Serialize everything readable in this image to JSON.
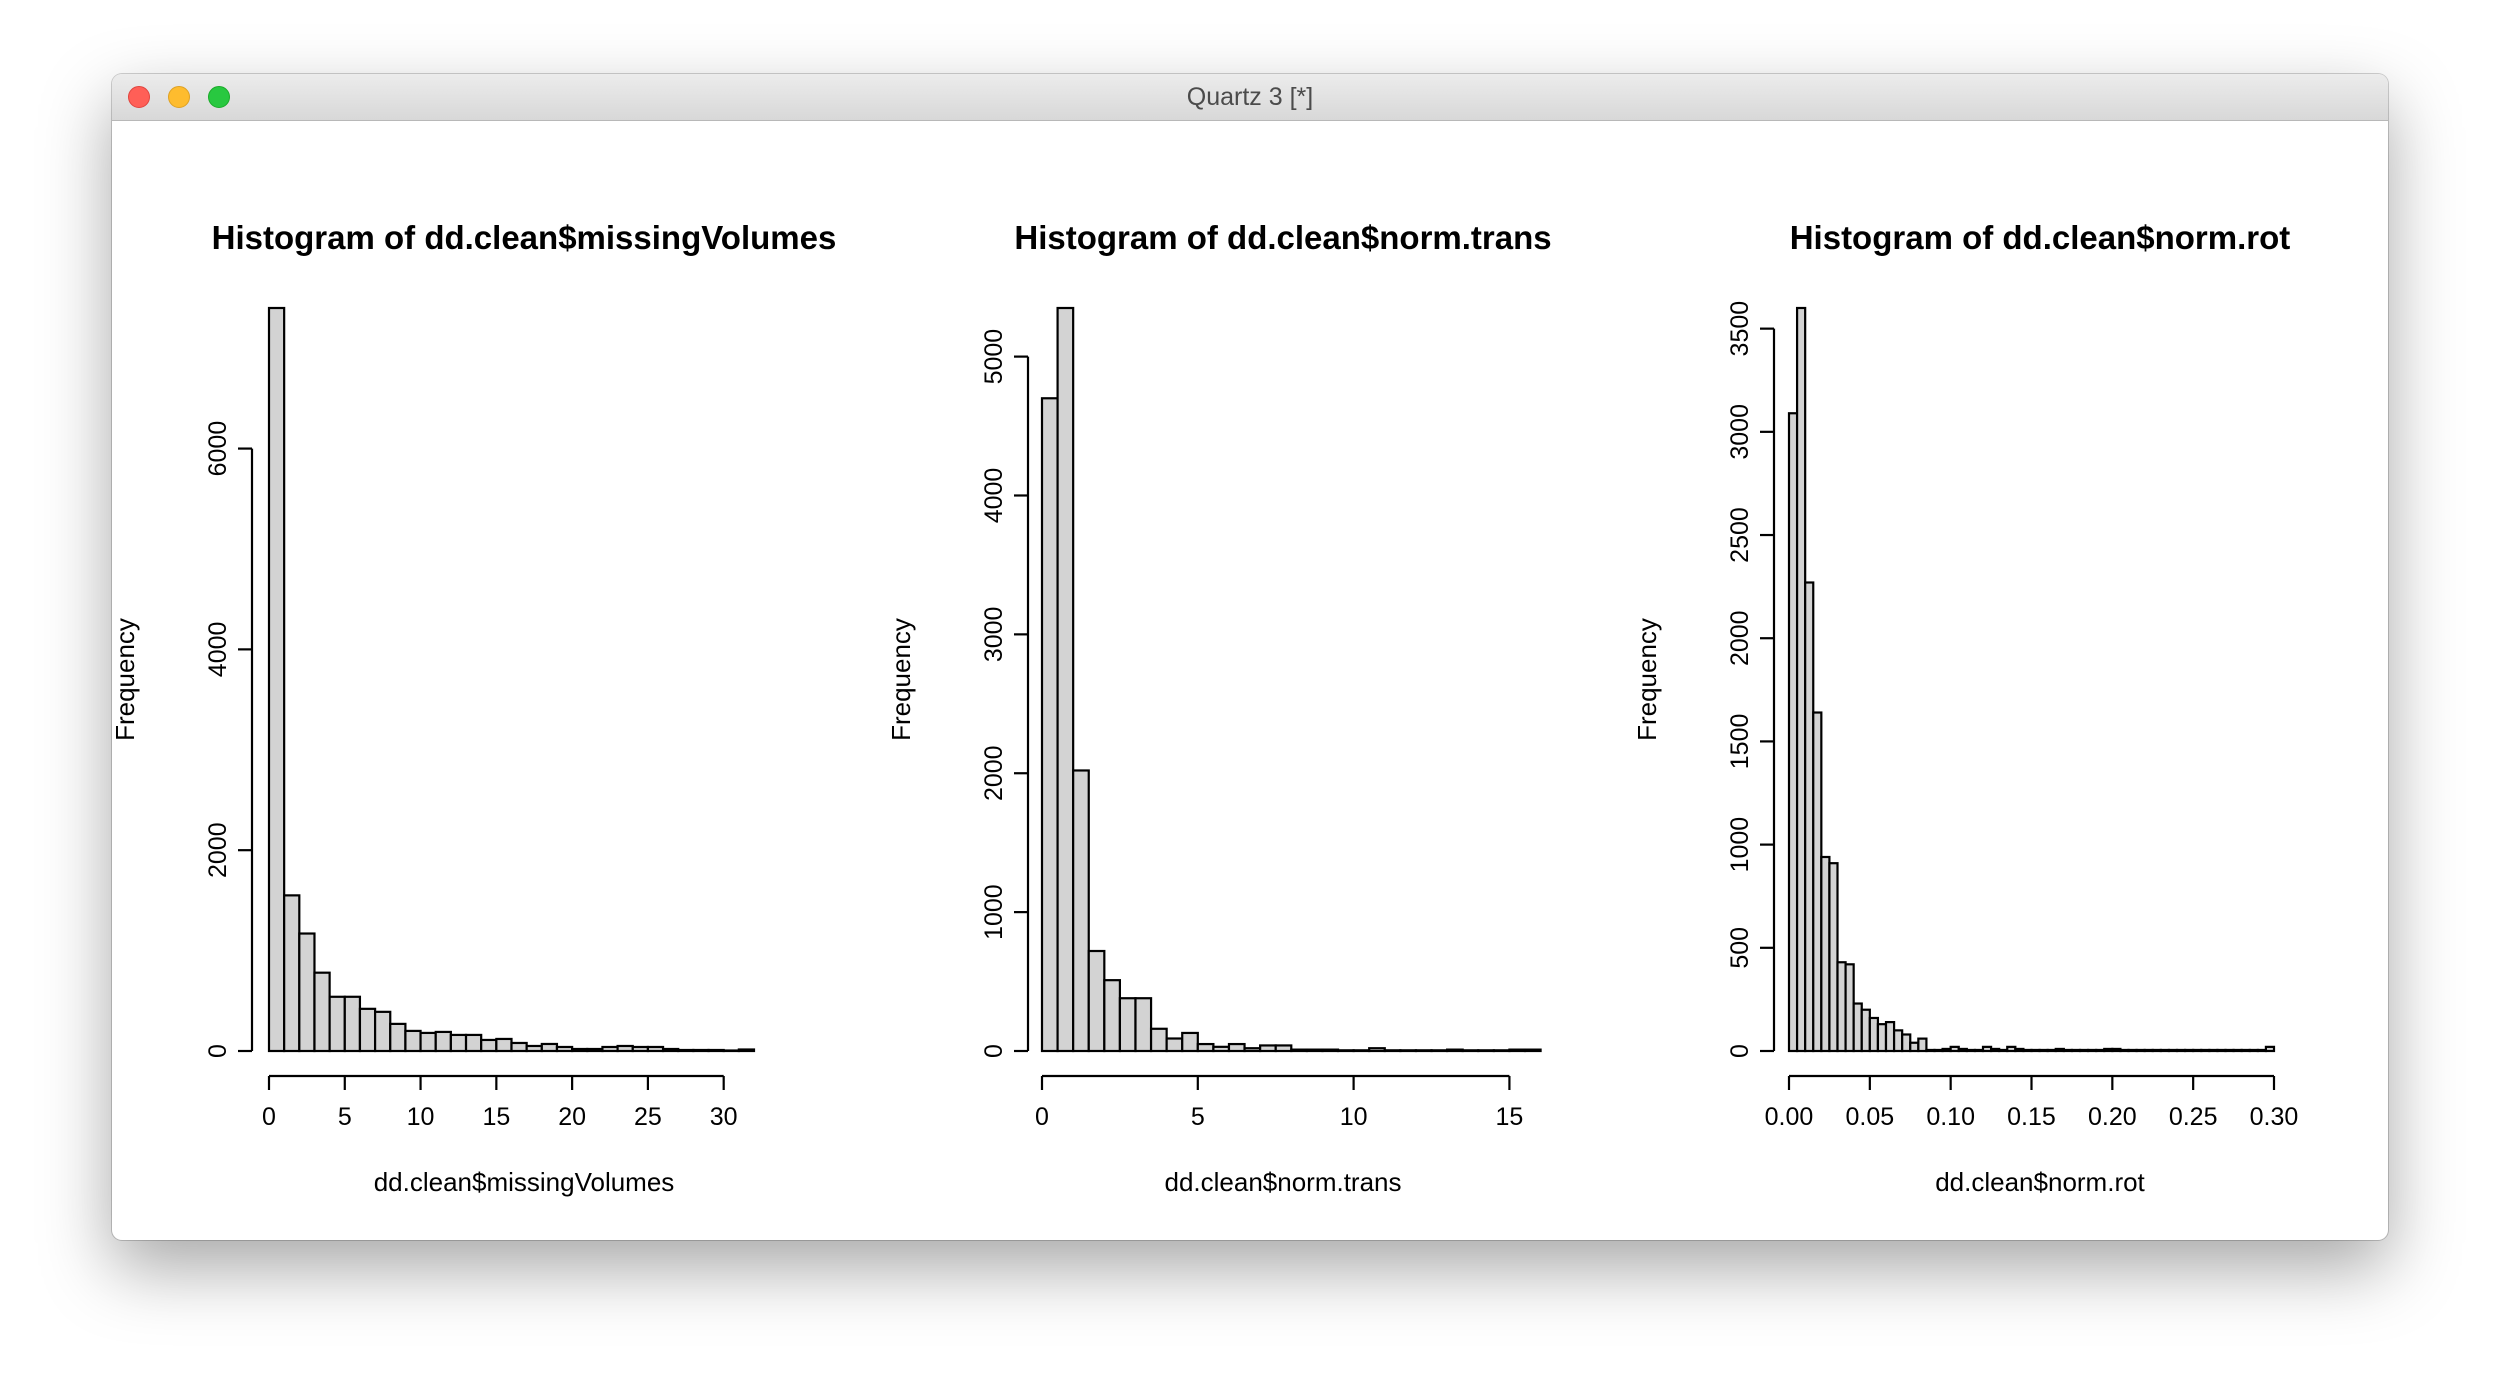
{
  "window": {
    "title": "Quartz 3 [*]"
  },
  "chart_data": [
    {
      "type": "histogram",
      "title": "Histogram of dd.clean$missingVolumes",
      "xlabel": "dd.clean$missingVolumes",
      "ylabel": "Frequency",
      "bin_width": 1,
      "bin_start": 0,
      "values": [
        7400,
        1550,
        1170,
        780,
        540,
        540,
        420,
        390,
        270,
        200,
        180,
        190,
        160,
        160,
        110,
        120,
        80,
        50,
        70,
        40,
        20,
        20,
        40,
        50,
        40,
        40,
        20,
        10,
        10,
        10,
        5,
        15
      ],
      "xlim": [
        0,
        32
      ],
      "ylim": [
        0,
        7400
      ],
      "xticks": [
        0,
        5,
        10,
        15,
        20,
        25,
        30
      ],
      "yticks": [
        0,
        2000,
        4000,
        6000
      ],
      "xtick_labels": [
        "0",
        "5",
        "10",
        "15",
        "20",
        "25",
        "30"
      ],
      "ytick_labels": [
        "0",
        "2000",
        "4000",
        "6000"
      ]
    },
    {
      "type": "histogram",
      "title": "Histogram of dd.clean$norm.trans",
      "xlabel": "dd.clean$norm.trans",
      "ylabel": "Frequency",
      "bin_width": 0.5,
      "bin_start": 0,
      "values": [
        4700,
        5350,
        2020,
        720,
        510,
        380,
        380,
        160,
        90,
        130,
        50,
        30,
        50,
        20,
        40,
        40,
        10,
        10,
        10,
        5,
        5,
        20,
        5,
        5,
        5,
        5,
        10,
        5,
        5,
        5,
        10,
        10
      ],
      "xlim": [
        0,
        15.5
      ],
      "ylim": [
        0,
        5350
      ],
      "xticks": [
        0,
        5,
        10,
        15
      ],
      "yticks": [
        0,
        1000,
        2000,
        3000,
        4000,
        5000
      ],
      "xtick_labels": [
        "0",
        "5",
        "10",
        "15"
      ],
      "ytick_labels": [
        "0",
        "1000",
        "2000",
        "3000",
        "4000",
        "5000"
      ]
    },
    {
      "type": "histogram",
      "title": "Histogram of dd.clean$norm.rot",
      "xlabel": "dd.clean$norm.rot",
      "ylabel": "Frequency",
      "bin_width": 0.005,
      "bin_start": 0,
      "values": [
        3090,
        3600,
        2270,
        1640,
        940,
        910,
        430,
        420,
        230,
        200,
        160,
        130,
        140,
        100,
        80,
        40,
        60,
        5,
        5,
        10,
        20,
        10,
        5,
        5,
        20,
        10,
        5,
        20,
        10,
        5,
        5,
        5,
        5,
        10,
        5,
        5,
        5,
        5,
        5,
        10,
        10,
        5,
        5,
        5,
        5,
        5,
        5,
        5,
        5,
        5,
        5,
        5,
        5,
        5,
        5,
        5,
        5,
        5,
        5,
        20
      ],
      "xlim": [
        0,
        0.3
      ],
      "ylim": [
        0,
        3600
      ],
      "xticks": [
        0,
        0.05,
        0.1,
        0.15,
        0.2,
        0.25,
        0.3
      ],
      "yticks": [
        0,
        500,
        1000,
        1500,
        2000,
        2500,
        3000,
        3500
      ],
      "xtick_labels": [
        "0.00",
        "0.05",
        "0.10",
        "0.15",
        "0.20",
        "0.25",
        "0.30"
      ],
      "ytick_labels": [
        "0",
        "500",
        "1000",
        "1500",
        "2000",
        "2500",
        "3000",
        "3500"
      ]
    }
  ]
}
